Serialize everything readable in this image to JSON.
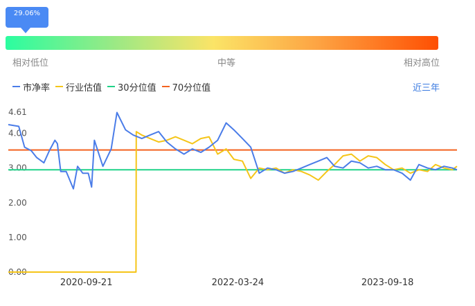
{
  "gauge": {
    "percentile_label": "29.06%",
    "percentile_value": 0.2906,
    "label_low": "相对低位",
    "label_mid": "中等",
    "label_high": "相对高位",
    "gradient_colors": [
      "#2bfda0",
      "#fbe467",
      "#fe4f03"
    ]
  },
  "legend": {
    "pb_label": "市净率",
    "industry_label": "行业估值",
    "p30_label": "30分位值",
    "p70_label": "70分位值"
  },
  "range_tab": "近三年",
  "colors": {
    "pb": "#4a7ce8",
    "industry": "#f5c518",
    "p30": "#1fd388",
    "p70": "#f4621f",
    "tooltip": "#4a8af4"
  },
  "chart_data": {
    "type": "line",
    "title": "",
    "xlabel": "",
    "ylabel": "",
    "y_tick_labels": [
      "4.61",
      "4.00",
      "3.00",
      "2.00",
      "1.00",
      "0.00"
    ],
    "y_tick_values": [
      4.61,
      4.0,
      3.0,
      2.0,
      1.0,
      0.0
    ],
    "ylim": [
      0,
      4.61
    ],
    "x_tick_labels": [
      "2020-09-21",
      "2022-03-24",
      "2023-09-18"
    ],
    "x_tick_dates": [
      "2020-09-21",
      "2022-03-24",
      "2023-09-18"
    ],
    "xlim": [
      "2019-12-13",
      "2024-05-27"
    ],
    "grid": false,
    "legend_position": "top-left",
    "series": [
      {
        "name": "市净率",
        "x": [
          "2019-12-13",
          "2020-01-20",
          "2020-02-10",
          "2020-03-05",
          "2020-03-25",
          "2020-04-20",
          "2020-05-10",
          "2020-05-30",
          "2020-06-08",
          "2020-06-20",
          "2020-07-10",
          "2020-08-05",
          "2020-08-20",
          "2020-09-08",
          "2020-09-28",
          "2020-10-10",
          "2020-10-20",
          "2020-11-20",
          "2020-12-20",
          "2021-01-10",
          "2021-02-10",
          "2021-03-10",
          "2021-04-10",
          "2021-05-10",
          "2021-06-10",
          "2021-07-10",
          "2021-08-10",
          "2021-09-10",
          "2021-10-10",
          "2021-11-10",
          "2021-12-10",
          "2022-01-10",
          "2022-02-10",
          "2022-03-10",
          "2022-04-10",
          "2022-05-10",
          "2022-06-10",
          "2022-07-10",
          "2022-08-10",
          "2022-09-10",
          "2022-10-10",
          "2022-11-10",
          "2022-12-10",
          "2023-01-10",
          "2023-02-10",
          "2023-03-10",
          "2023-04-10",
          "2023-05-10",
          "2023-06-10",
          "2023-07-10",
          "2023-08-10",
          "2023-09-10",
          "2023-10-10",
          "2023-11-10",
          "2023-12-10",
          "2024-01-10",
          "2024-02-10",
          "2024-03-10",
          "2024-04-10",
          "2024-05-10",
          "2024-05-27"
        ],
        "values": [
          4.25,
          4.2,
          3.6,
          3.5,
          3.3,
          3.15,
          3.5,
          3.8,
          3.7,
          2.9,
          2.9,
          2.4,
          3.05,
          2.85,
          2.85,
          2.45,
          3.8,
          3.05,
          3.55,
          4.6,
          4.1,
          3.95,
          3.85,
          3.95,
          4.05,
          3.75,
          3.55,
          3.4,
          3.55,
          3.45,
          3.6,
          3.8,
          4.3,
          4.1,
          3.85,
          3.6,
          2.85,
          3.0,
          2.95,
          2.85,
          2.9,
          3.0,
          3.1,
          3.2,
          3.3,
          3.05,
          3.0,
          3.2,
          3.15,
          3.0,
          3.05,
          2.95,
          2.95,
          2.85,
          2.65,
          3.1,
          3.0,
          2.95,
          3.05,
          3.0,
          2.95
        ]
      },
      {
        "name": "行业估值",
        "x": [
          "2019-12-13",
          "2021-03-20",
          "2021-03-21",
          "2021-04-10",
          "2021-05-10",
          "2021-06-10",
          "2021-07-10",
          "2021-08-10",
          "2021-09-10",
          "2021-10-10",
          "2021-11-10",
          "2021-12-10",
          "2022-01-10",
          "2022-02-10",
          "2022-03-10",
          "2022-04-10",
          "2022-05-10",
          "2022-06-10",
          "2022-07-10",
          "2022-08-10",
          "2022-09-10",
          "2022-10-10",
          "2022-11-10",
          "2022-12-10",
          "2023-01-10",
          "2023-02-10",
          "2023-03-10",
          "2023-04-10",
          "2023-05-10",
          "2023-06-10",
          "2023-07-10",
          "2023-08-10",
          "2023-09-10",
          "2023-10-10",
          "2023-11-10",
          "2023-12-10",
          "2024-01-10",
          "2024-02-10",
          "2024-03-10",
          "2024-04-10",
          "2024-05-10",
          "2024-05-27"
        ],
        "values": [
          0.0,
          0.0,
          4.05,
          3.95,
          3.85,
          3.75,
          3.8,
          3.9,
          3.8,
          3.7,
          3.85,
          3.9,
          3.4,
          3.55,
          3.25,
          3.2,
          2.7,
          3.0,
          2.95,
          3.0,
          2.85,
          2.95,
          2.9,
          2.8,
          2.65,
          2.9,
          3.1,
          3.35,
          3.4,
          3.2,
          3.35,
          3.3,
          3.1,
          2.95,
          3.0,
          2.85,
          2.95,
          2.9,
          3.1,
          3.0,
          2.95,
          3.05
        ]
      },
      {
        "name": "30分位值",
        "x": [
          "2019-12-13",
          "2024-05-27"
        ],
        "values": [
          2.95,
          2.95
        ]
      },
      {
        "name": "70分位值",
        "x": [
          "2019-12-13",
          "2024-05-27"
        ],
        "values": [
          3.52,
          3.52
        ]
      }
    ]
  }
}
